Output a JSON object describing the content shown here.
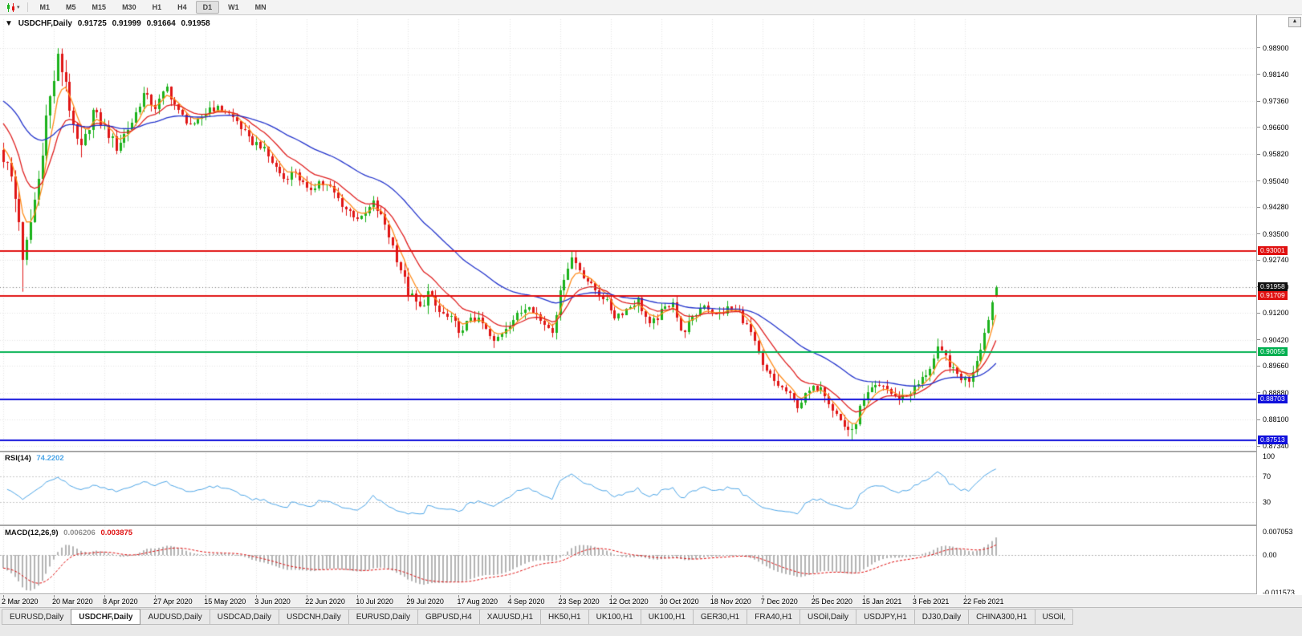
{
  "toolbar": {
    "chart_type_icon": "candlestick-chart-icon",
    "dropdown_icon": "▾",
    "timeframes": [
      "M1",
      "M5",
      "M15",
      "M30",
      "H1",
      "H4",
      "D1",
      "W1",
      "MN"
    ],
    "active_timeframe": "D1"
  },
  "chart": {
    "title": {
      "collapse_icon": "▼",
      "symbol": "USDCHF,Daily",
      "open": "0.91725",
      "high": "0.91999",
      "low": "0.91664",
      "close": "0.91958"
    },
    "scroll_up_icon": "▲",
    "price_axis": {
      "ticks": [
        {
          "label": "0.98900",
          "value": 0.989
        },
        {
          "label": "0.98140",
          "value": 0.9814
        },
        {
          "label": "0.97360",
          "value": 0.9736
        },
        {
          "label": "0.96600",
          "value": 0.966
        },
        {
          "label": "0.95820",
          "value": 0.9582
        },
        {
          "label": "0.95040",
          "value": 0.9504
        },
        {
          "label": "0.94280",
          "value": 0.9428
        },
        {
          "label": "0.93500",
          "value": 0.935
        },
        {
          "label": "0.92740",
          "value": 0.9274
        },
        {
          "label": "0.91960",
          "value": 0.9196
        },
        {
          "label": "0.91200",
          "value": 0.912
        },
        {
          "label": "0.90420",
          "value": 0.9042
        },
        {
          "label": "0.89660",
          "value": 0.8966
        },
        {
          "label": "0.88880",
          "value": 0.8888
        },
        {
          "label": "0.88100",
          "value": 0.881
        },
        {
          "label": "0.87340",
          "value": 0.8734
        }
      ]
    },
    "badges": [
      {
        "label": "0.91958",
        "value": 0.91958,
        "bg": "#111111",
        "name": "current-price-badge"
      },
      {
        "label": "0.93001",
        "value": 0.93001,
        "bg": "#e01010",
        "name": "resistance-line-badge"
      },
      {
        "label": "0.91709",
        "value": 0.91709,
        "bg": "#e01010",
        "name": "resistance-line-badge"
      },
      {
        "label": "0.90055",
        "value": 0.90055,
        "bg": "#00b050",
        "name": "support-line-badge"
      },
      {
        "label": "0.88703",
        "value": 0.88703,
        "bg": "#1010dc",
        "name": "support-line-badge"
      },
      {
        "label": "0.87513",
        "value": 0.87513,
        "bg": "#1010dc",
        "name": "support-line-badge"
      }
    ]
  },
  "rsi_panel": {
    "name": "RSI(14)",
    "value": "74.2202",
    "line_color": "#4da6e8",
    "axis": [
      {
        "label": "100",
        "value": 100
      },
      {
        "label": "70",
        "value": 70
      },
      {
        "label": "30",
        "value": 30
      }
    ],
    "guides": [
      70,
      30
    ]
  },
  "macd_panel": {
    "name": "MACD(12,26,9)",
    "main_value": "0.006206",
    "signal_value": "0.003875",
    "main_color": "#b4b4b4",
    "signal_color": "#e01010",
    "axis": [
      {
        "label": "0.007053",
        "value": 0.007053
      },
      {
        "label": "0.00",
        "value": 0
      },
      {
        "label": "-0.011573",
        "value": -0.011573
      }
    ]
  },
  "time_axis": {
    "labels": [
      {
        "index": 0,
        "text": "2 Mar 2020"
      },
      {
        "index": 13,
        "text": "20 Mar 2020"
      },
      {
        "index": 26,
        "text": "8 Apr 2020"
      },
      {
        "index": 39,
        "text": "27 Apr 2020"
      },
      {
        "index": 52,
        "text": "15 May 2020"
      },
      {
        "index": 65,
        "text": "3 Jun 2020"
      },
      {
        "index": 78,
        "text": "22 Jun 2020"
      },
      {
        "index": 91,
        "text": "10 Jul 2020"
      },
      {
        "index": 104,
        "text": "29 Jul 2020"
      },
      {
        "index": 117,
        "text": "17 Aug 2020"
      },
      {
        "index": 130,
        "text": "4 Sep 2020"
      },
      {
        "index": 143,
        "text": "23 Sep 2020"
      },
      {
        "index": 156,
        "text": "12 Oct 2020"
      },
      {
        "index": 169,
        "text": "30 Oct 2020"
      },
      {
        "index": 182,
        "text": "18 Nov 2020"
      },
      {
        "index": 195,
        "text": "7 Dec 2020"
      },
      {
        "index": 208,
        "text": "25 Dec 2020"
      },
      {
        "index": 221,
        "text": "15 Jan 2021"
      },
      {
        "index": 234,
        "text": "3 Feb 2021"
      },
      {
        "index": 247,
        "text": "22 Feb 2021"
      }
    ]
  },
  "tabs": {
    "active_index": 1,
    "items": [
      "EURUSD,Daily",
      "USDCHF,Daily",
      "AUDUSD,Daily",
      "USDCAD,Daily",
      "USDCNH,Daily",
      "EURUSD,Daily",
      "GBPUSD,H4",
      "XAUUSD,H1",
      "HK50,H1",
      "UK100,H1",
      "UK100,H1",
      "GER30,H1",
      "FRA40,H1",
      "USOil,Daily",
      "USDJPY,H1",
      "DJ30,Daily",
      "CHINA300,H1",
      "USOil,"
    ]
  },
  "chart_data": {
    "type": "candlestick",
    "symbol": "USDCHF",
    "timeframe": "Daily",
    "num_candles": 256,
    "last_candle": {
      "open": 0.91725,
      "high": 0.91999,
      "low": 0.91664,
      "close": 0.91958
    },
    "up_color": "#1cb21c",
    "down_color": "#e01515",
    "close_anchors": [
      [
        0,
        0.9575
      ],
      [
        2,
        0.9515
      ],
      [
        4,
        0.9395
      ],
      [
        5,
        0.926
      ],
      [
        6,
        0.932
      ],
      [
        7,
        0.9385
      ],
      [
        9,
        0.951
      ],
      [
        11,
        0.969
      ],
      [
        13,
        0.98
      ],
      [
        14,
        0.9858
      ],
      [
        16,
        0.9795
      ],
      [
        18,
        0.9645
      ],
      [
        20,
        0.959
      ],
      [
        23,
        0.9705
      ],
      [
        26,
        0.9658
      ],
      [
        29,
        0.9602
      ],
      [
        33,
        0.9675
      ],
      [
        36,
        0.9755
      ],
      [
        39,
        0.9718
      ],
      [
        42,
        0.9775
      ],
      [
        45,
        0.9702
      ],
      [
        49,
        0.966
      ],
      [
        53,
        0.9718
      ],
      [
        57,
        0.9708
      ],
      [
        60,
        0.9678
      ],
      [
        63,
        0.9622
      ],
      [
        66,
        0.9608
      ],
      [
        69,
        0.9558
      ],
      [
        72,
        0.9512
      ],
      [
        75,
        0.9532
      ],
      [
        78,
        0.9472
      ],
      [
        81,
        0.9502
      ],
      [
        84,
        0.9482
      ],
      [
        88,
        0.9422
      ],
      [
        92,
        0.9392
      ],
      [
        95,
        0.944
      ],
      [
        98,
        0.9378
      ],
      [
        101,
        0.9282
      ],
      [
        104,
        0.918
      ],
      [
        107,
        0.9132
      ],
      [
        109,
        0.9178
      ],
      [
        112,
        0.9122
      ],
      [
        115,
        0.91
      ],
      [
        118,
        0.9062
      ],
      [
        120,
        0.9112
      ],
      [
        123,
        0.9088
      ],
      [
        126,
        0.9032
      ],
      [
        129,
        0.9082
      ],
      [
        132,
        0.9112
      ],
      [
        135,
        0.9148
      ],
      [
        138,
        0.9098
      ],
      [
        141,
        0.9072
      ],
      [
        144,
        0.9228
      ],
      [
        146,
        0.9282
      ],
      [
        148,
        0.9248
      ],
      [
        151,
        0.9198
      ],
      [
        154,
        0.9168
      ],
      [
        157,
        0.9112
      ],
      [
        160,
        0.9132
      ],
      [
        163,
        0.9158
      ],
      [
        166,
        0.9082
      ],
      [
        169,
        0.9122
      ],
      [
        172,
        0.9158
      ],
      [
        174,
        0.9062
      ],
      [
        177,
        0.9102
      ],
      [
        180,
        0.9148
      ],
      [
        183,
        0.9112
      ],
      [
        186,
        0.9132
      ],
      [
        189,
        0.9122
      ],
      [
        192,
        0.9062
      ],
      [
        195,
        0.8962
      ],
      [
        198,
        0.8922
      ],
      [
        201,
        0.8892
      ],
      [
        204,
        0.8852
      ],
      [
        207,
        0.8892
      ],
      [
        210,
        0.8912
      ],
      [
        213,
        0.8842
      ],
      [
        216,
        0.8792
      ],
      [
        218,
        0.8772
      ],
      [
        220,
        0.8842
      ],
      [
        223,
        0.8898
      ],
      [
        226,
        0.8912
      ],
      [
        229,
        0.8872
      ],
      [
        232,
        0.8882
      ],
      [
        235,
        0.8912
      ],
      [
        238,
        0.8962
      ],
      [
        240,
        0.9012
      ],
      [
        242,
        0.8992
      ],
      [
        244,
        0.8952
      ],
      [
        246,
        0.8932
      ],
      [
        248,
        0.8926
      ],
      [
        250,
        0.8986
      ],
      [
        252,
        0.9062
      ],
      [
        254,
        0.9152
      ],
      [
        255,
        0.91958
      ]
    ],
    "volatility_zones": [
      {
        "from": 0,
        "to": 20,
        "factor": 2.0
      },
      {
        "from": 21,
        "to": 32,
        "factor": 1.4
      },
      {
        "from": 99,
        "to": 110,
        "factor": 1.3
      }
    ],
    "extremes": [
      {
        "index": 5,
        "type": "low",
        "value": 0.9182
      },
      {
        "index": 14,
        "type": "high",
        "value": 0.989
      },
      {
        "index": 146,
        "type": "high",
        "value": 0.93
      },
      {
        "index": 218,
        "type": "low",
        "value": 0.8752
      },
      {
        "index": 240,
        "type": "high",
        "value": 0.9046
      }
    ],
    "levels": [
      {
        "price": 0.93001,
        "color": "#e01010"
      },
      {
        "price": 0.91709,
        "color": "#e01010"
      },
      {
        "price": 0.90055,
        "color": "#00b050"
      },
      {
        "price": 0.88703,
        "color": "#1010dc"
      },
      {
        "price": 0.87513,
        "color": "#1010dc"
      }
    ],
    "moving_averages": [
      {
        "period": 5,
        "color": "#ff8c1a",
        "seed": 0.962
      },
      {
        "period": 13,
        "color": "#e02020",
        "seed": 0.969
      },
      {
        "period": 40,
        "color": "#2233cc",
        "seed": 0.9745
      }
    ],
    "indicators": {
      "rsi": {
        "period": 14,
        "last": 74.2202
      },
      "macd": {
        "fast": 12,
        "slow": 26,
        "signal": 9,
        "last_main": 0.006206,
        "last_signal": 0.003875,
        "seed_fast": 0.971,
        "seed_slow": 0.974
      }
    }
  }
}
